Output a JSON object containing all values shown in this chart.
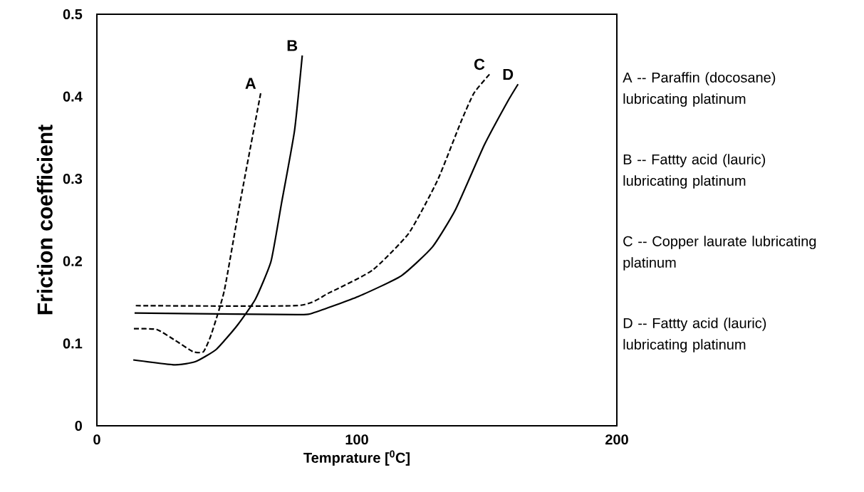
{
  "chart_data": {
    "type": "line",
    "xlabel": "Temprature [$^{0}$C]",
    "ylabel": "Friction coefficient",
    "xlim": [
      0,
      200
    ],
    "ylim": [
      0,
      0.5
    ],
    "xticks": [
      0,
      100,
      200
    ],
    "yticks": [
      0,
      0.1,
      0.2,
      0.3,
      0.4,
      0.5
    ],
    "grid": false,
    "legend": false,
    "marker": "none",
    "series": [
      {
        "name": "A",
        "color": "#000000",
        "line_style": "dashed",
        "x": [
          14,
          23,
          30,
          37,
          41,
          44,
          49,
          55,
          63
        ],
        "values": [
          0.118,
          0.117,
          0.104,
          0.09,
          0.09,
          0.111,
          0.164,
          0.27,
          0.404
        ]
      },
      {
        "name": "B",
        "color": "#000000",
        "line_style": "solid",
        "x": [
          14,
          30,
          38,
          46,
          54,
          61,
          67,
          71,
          76,
          79
        ],
        "values": [
          0.08,
          0.074,
          0.078,
          0.093,
          0.122,
          0.154,
          0.2,
          0.27,
          0.358,
          0.45
        ]
      },
      {
        "name": "C",
        "color": "#000000",
        "line_style": "dashed",
        "x": [
          14,
          77,
          89,
          106,
          120,
          131,
          140,
          145,
          151
        ],
        "values": [
          0.146,
          0.146,
          0.161,
          0.189,
          0.234,
          0.298,
          0.369,
          0.404,
          0.427
        ]
      },
      {
        "name": "D",
        "color": "#000000",
        "line_style": "solid",
        "x": [
          14.5,
          77,
          84,
          100.5,
          117,
          129,
          138,
          149,
          158,
          162
        ],
        "values": [
          0.137,
          0.135,
          0.138,
          0.157,
          0.182,
          0.217,
          0.263,
          0.341,
          0.394,
          0.415
        ]
      }
    ],
    "annotations": [
      "A -- Paraffin (docosane) lubricating platinum",
      "B -- Fattty acid (lauric) lubricating platinum",
      "C -- Copper laurate lubricating platinum",
      "D -- Fattty acid (lauric) lubricating platinum"
    ]
  }
}
